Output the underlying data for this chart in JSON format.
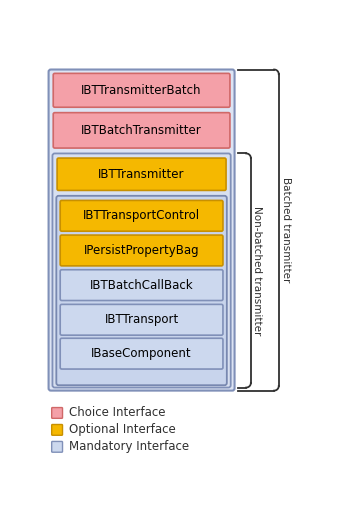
{
  "bg_color": "#ffffff",
  "pink_fill": "#f4a0a8",
  "pink_edge": "#d06868",
  "orange_fill": "#f5b800",
  "orange_edge": "#c89000",
  "blue_fill": "#ccd8ee",
  "blue_edge": "#8090b8",
  "nb_box_fill": "#d8e0f0",
  "nb_box_edge": "#8090b8",
  "outer_fill": "#dde4f4",
  "outer_edge": "#8090b8",
  "ib_fill": "#c8d4ec",
  "ib_edge": "#7888b0",
  "legend": [
    {
      "label": "Choice Interface",
      "fill": "#f4a0a8",
      "edge": "#d06868"
    },
    {
      "label": "Optional Interface",
      "fill": "#f5b800",
      "edge": "#c89000"
    },
    {
      "label": "Mandatory Interface",
      "fill": "#ccd8ee",
      "edge": "#8090b8"
    }
  ],
  "label_nonbatched": "Non-batched transmitter",
  "label_batched": "Batched transmitter",
  "font_size": 8.5,
  "legend_font_size": 8.5
}
